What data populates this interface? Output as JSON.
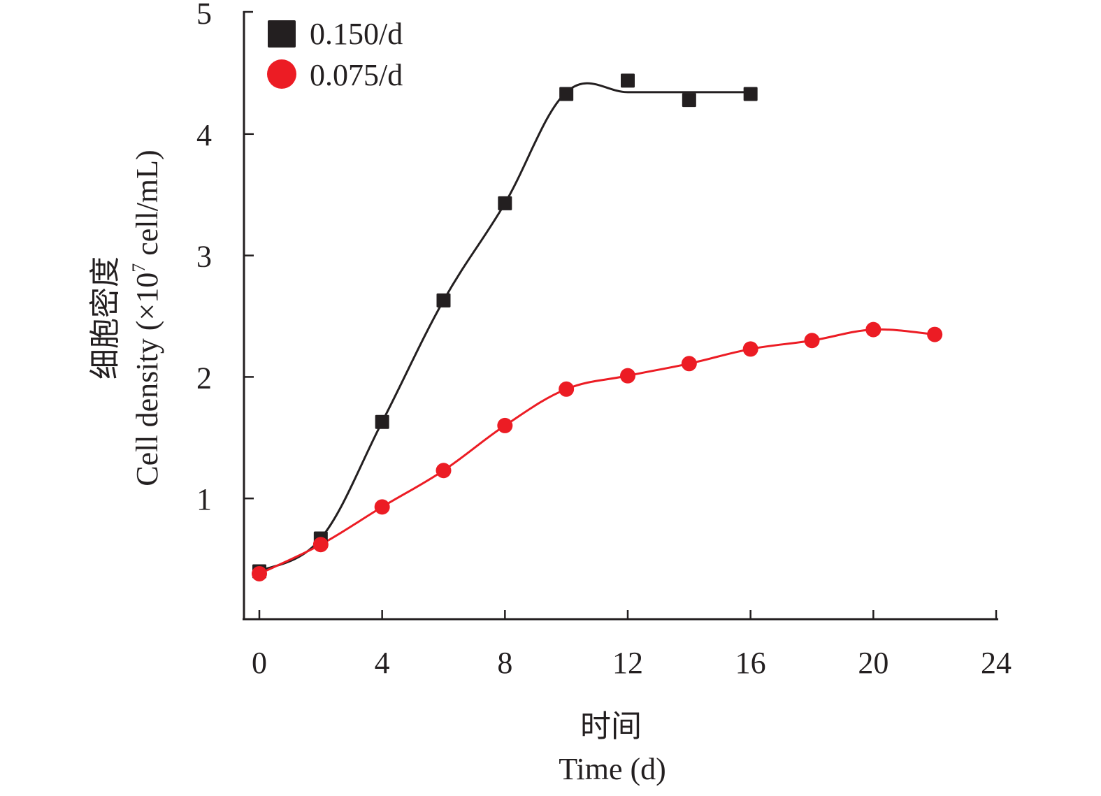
{
  "chart_data": {
    "type": "line",
    "title": "",
    "xlabel_cn": "时间",
    "xlabel": "Time (d)",
    "ylabel_cn": "细胞密度",
    "ylabel_pre": "Cell density (×10",
    "ylabel_sup": "7",
    "ylabel_post": " cell/mL)",
    "xlim": [
      0,
      24
    ],
    "ylim": [
      0,
      5
    ],
    "xticks": [
      0,
      4,
      8,
      12,
      16,
      20,
      24
    ],
    "yticks": [
      1,
      2,
      3,
      4,
      5
    ],
    "grid": false,
    "legend_position": "top-left",
    "series": [
      {
        "name": "0.150/d",
        "marker": "square",
        "color": "#231f20",
        "x": [
          0,
          2,
          4,
          6,
          8,
          10,
          12,
          14,
          16
        ],
        "values": [
          0.4,
          0.67,
          1.63,
          2.63,
          3.43,
          4.33,
          4.44,
          4.28,
          4.33
        ]
      },
      {
        "name": "0.075/d",
        "marker": "circle",
        "color": "#ec1c24",
        "x": [
          0,
          2,
          4,
          6,
          8,
          10,
          12,
          14,
          16,
          18,
          20,
          22
        ],
        "values": [
          0.38,
          0.62,
          0.93,
          1.23,
          1.6,
          1.9,
          2.01,
          2.11,
          2.23,
          2.3,
          2.39,
          2.35
        ]
      }
    ]
  }
}
